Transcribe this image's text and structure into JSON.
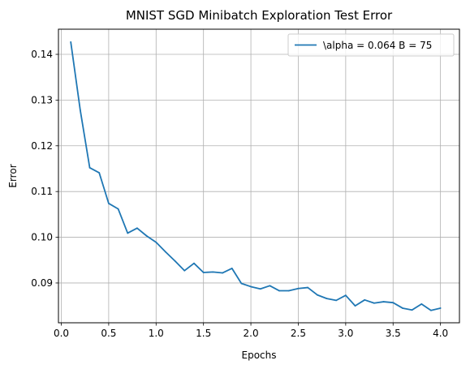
{
  "chart_data": {
    "type": "line",
    "title": "MNIST SGD Minibatch Exploration Test Error",
    "xlabel": "Epochs",
    "ylabel": "Error",
    "xlim": [
      -0.03,
      4.2
    ],
    "ylim": [
      0.0813,
      0.1455
    ],
    "xticks": [
      0.0,
      0.5,
      1.0,
      1.5,
      2.0,
      2.5,
      3.0,
      3.5,
      4.0
    ],
    "xtick_labels": [
      "0.0",
      "0.5",
      "1.0",
      "1.5",
      "2.0",
      "2.5",
      "3.0",
      "3.5",
      "4.0"
    ],
    "yticks": [
      0.09,
      0.1,
      0.11,
      0.12,
      0.13,
      0.14
    ],
    "ytick_labels": [
      "0.09",
      "0.10",
      "0.11",
      "0.12",
      "0.13",
      "0.14"
    ],
    "grid": true,
    "legend_position": "top-right",
    "series": [
      {
        "name": "\\alpha = 0.064 B = 75",
        "color": "#1f77b4",
        "x": [
          0.1,
          0.2,
          0.3,
          0.4,
          0.5,
          0.6,
          0.7,
          0.8,
          0.9,
          1.0,
          1.1,
          1.2,
          1.3,
          1.4,
          1.5,
          1.6,
          1.7,
          1.8,
          1.9,
          2.0,
          2.1,
          2.2,
          2.3,
          2.4,
          2.5,
          2.6,
          2.7,
          2.8,
          2.9,
          3.0,
          3.1,
          3.2,
          3.3,
          3.4,
          3.5,
          3.6,
          3.7,
          3.8,
          3.9,
          4.0
        ],
        "values": [
          0.1427,
          0.1278,
          0.1152,
          0.1141,
          0.1074,
          0.1062,
          0.1009,
          0.102,
          0.1003,
          0.0989,
          0.0968,
          0.0948,
          0.0927,
          0.0943,
          0.0923,
          0.0924,
          0.0922,
          0.0932,
          0.0899,
          0.0892,
          0.0887,
          0.0894,
          0.0883,
          0.0883,
          0.0888,
          0.089,
          0.0874,
          0.0866,
          0.0862,
          0.0873,
          0.085,
          0.0863,
          0.0856,
          0.0859,
          0.0857,
          0.0845,
          0.0841,
          0.0854,
          0.084,
          0.0845
        ]
      }
    ]
  }
}
